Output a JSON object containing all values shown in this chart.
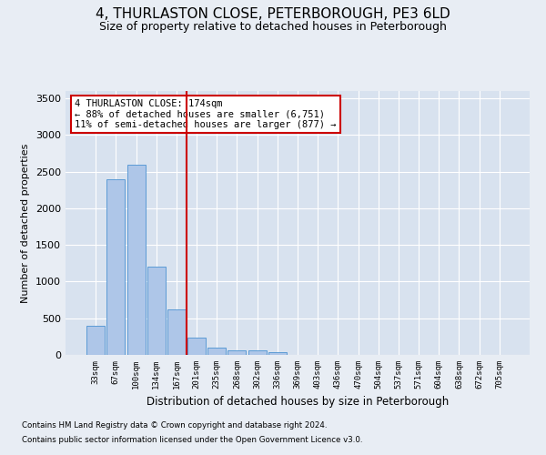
{
  "title": "4, THURLASTON CLOSE, PETERBOROUGH, PE3 6LD",
  "subtitle": "Size of property relative to detached houses in Peterborough",
  "xlabel": "Distribution of detached houses by size in Peterborough",
  "ylabel": "Number of detached properties",
  "footnote1": "Contains HM Land Registry data © Crown copyright and database right 2024.",
  "footnote2": "Contains public sector information licensed under the Open Government Licence v3.0.",
  "categories": [
    "33sqm",
    "67sqm",
    "100sqm",
    "134sqm",
    "167sqm",
    "201sqm",
    "235sqm",
    "268sqm",
    "302sqm",
    "336sqm",
    "369sqm",
    "403sqm",
    "436sqm",
    "470sqm",
    "504sqm",
    "537sqm",
    "571sqm",
    "604sqm",
    "638sqm",
    "672sqm",
    "705sqm"
  ],
  "values": [
    400,
    2400,
    2600,
    1200,
    620,
    240,
    100,
    65,
    60,
    40,
    0,
    0,
    0,
    0,
    0,
    0,
    0,
    0,
    0,
    0,
    0
  ],
  "bar_color": "#aec6e8",
  "bar_edge_color": "#5b9bd5",
  "red_line_x": 4.5,
  "annotation_title": "4 THURLASTON CLOSE: 174sqm",
  "annotation_line1": "← 88% of detached houses are smaller (6,751)",
  "annotation_line2": "11% of semi-detached houses are larger (877) →",
  "ylim": [
    0,
    3600
  ],
  "yticks": [
    0,
    500,
    1000,
    1500,
    2000,
    2500,
    3000,
    3500
  ],
  "bg_color": "#e8edf4",
  "plot_bg_color": "#d8e2ef",
  "grid_color": "#ffffff",
  "title_fontsize": 11,
  "subtitle_fontsize": 9,
  "annotation_box_color": "#ffffff",
  "annotation_border_color": "#cc0000",
  "red_line_color": "#cc0000"
}
